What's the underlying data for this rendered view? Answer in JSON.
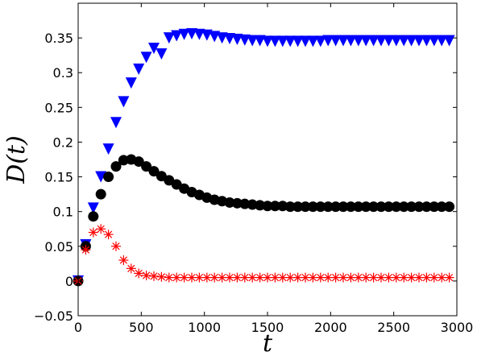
{
  "chart_data": {
    "type": "scatter",
    "xlabel": "t",
    "ylabel": "D(t)",
    "xlim": [
      0,
      3000
    ],
    "ylim": [
      -0.05,
      0.4
    ],
    "xticks": [
      0,
      500,
      1000,
      1500,
      2000,
      2500,
      3000
    ],
    "yticks": [
      -0.05,
      0,
      0.05,
      0.1,
      0.15,
      0.2,
      0.25,
      0.3,
      0.35
    ],
    "xtick_labels": [
      "0",
      "500",
      "1000",
      "1500",
      "2000",
      "2500",
      "3000"
    ],
    "ytick_labels": [
      "−0.05",
      "0",
      "0.05",
      "0.1",
      "0.15",
      "0.2",
      "0.25",
      "0.3",
      "0.35"
    ],
    "grid": false,
    "series": [
      {
        "marker": "triangle-down",
        "color": "#0000ff",
        "x": [
          0,
          60,
          120,
          180,
          240,
          300,
          360,
          420,
          480,
          540,
          600,
          660,
          720,
          780,
          840,
          900,
          960,
          1020,
          1080,
          1140,
          1200,
          1260,
          1320,
          1380,
          1440,
          1500,
          1560,
          1620,
          1680,
          1740,
          1800,
          1860,
          1920,
          1980,
          2040,
          2100,
          2160,
          2220,
          2280,
          2340,
          2400,
          2460,
          2520,
          2580,
          2640,
          2700,
          2760,
          2820,
          2880,
          2940
        ],
        "y": [
          0,
          0.052,
          0.105,
          0.15,
          0.19,
          0.228,
          0.258,
          0.285,
          0.305,
          0.322,
          0.335,
          0.327,
          0.35,
          0.353,
          0.355,
          0.356,
          0.355,
          0.354,
          0.352,
          0.35,
          0.349,
          0.348,
          0.347,
          0.346,
          0.346,
          0.345,
          0.345,
          0.345,
          0.345,
          0.345,
          0.345,
          0.345,
          0.345,
          0.346,
          0.346,
          0.346,
          0.346,
          0.346,
          0.346,
          0.346,
          0.346,
          0.346,
          0.346,
          0.346,
          0.346,
          0.346,
          0.346,
          0.346,
          0.346,
          0.346
        ]
      },
      {
        "marker": "circle",
        "color": "#000000",
        "x": [
          0,
          60,
          120,
          180,
          240,
          300,
          360,
          420,
          480,
          540,
          600,
          660,
          720,
          780,
          840,
          900,
          960,
          1020,
          1080,
          1140,
          1200,
          1260,
          1320,
          1380,
          1440,
          1500,
          1560,
          1620,
          1680,
          1740,
          1800,
          1860,
          1920,
          1980,
          2040,
          2100,
          2160,
          2220,
          2280,
          2340,
          2400,
          2460,
          2520,
          2580,
          2640,
          2700,
          2760,
          2820,
          2880,
          2940
        ],
        "y": [
          0,
          0.05,
          0.093,
          0.125,
          0.15,
          0.165,
          0.174,
          0.175,
          0.172,
          0.165,
          0.158,
          0.151,
          0.145,
          0.139,
          0.133,
          0.128,
          0.124,
          0.12,
          0.117,
          0.115,
          0.113,
          0.112,
          0.111,
          0.11,
          0.109,
          0.108,
          0.108,
          0.108,
          0.107,
          0.107,
          0.107,
          0.107,
          0.107,
          0.107,
          0.107,
          0.107,
          0.107,
          0.107,
          0.107,
          0.107,
          0.107,
          0.107,
          0.107,
          0.107,
          0.107,
          0.107,
          0.107,
          0.107,
          0.107,
          0.107
        ]
      },
      {
        "marker": "asterisk",
        "color": "#ff0000",
        "x": [
          0,
          60,
          120,
          180,
          240,
          300,
          360,
          420,
          480,
          540,
          600,
          660,
          720,
          780,
          840,
          900,
          960,
          1020,
          1080,
          1140,
          1200,
          1260,
          1320,
          1380,
          1440,
          1500,
          1560,
          1620,
          1680,
          1740,
          1800,
          1860,
          1920,
          1980,
          2040,
          2100,
          2160,
          2220,
          2280,
          2340,
          2400,
          2460,
          2520,
          2580,
          2640,
          2700,
          2760,
          2820,
          2880,
          2940
        ],
        "y": [
          0,
          0.045,
          0.07,
          0.075,
          0.067,
          0.05,
          0.03,
          0.018,
          0.011,
          0.008,
          0.007,
          0.006,
          0.005,
          0.005,
          0.005,
          0.005,
          0.005,
          0.005,
          0.005,
          0.005,
          0.005,
          0.005,
          0.005,
          0.005,
          0.005,
          0.005,
          0.005,
          0.005,
          0.005,
          0.005,
          0.005,
          0.005,
          0.005,
          0.005,
          0.005,
          0.005,
          0.005,
          0.005,
          0.005,
          0.005,
          0.005,
          0.005,
          0.005,
          0.005,
          0.005,
          0.005,
          0.005,
          0.005,
          0.005,
          0.005
        ]
      }
    ]
  }
}
